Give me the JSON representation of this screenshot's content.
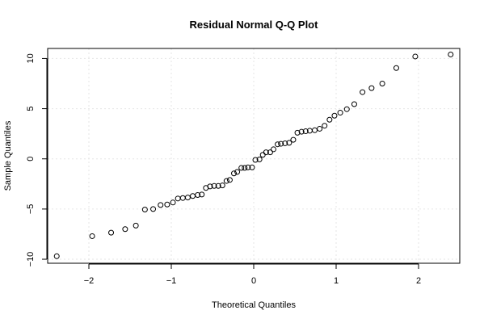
{
  "chart_data": {
    "type": "scatter",
    "title": "Residual Normal Q-Q Plot",
    "xlabel": "Theoretical Quantiles",
    "ylabel": "Sample Quantiles",
    "xlim": [
      -2.5,
      2.5
    ],
    "ylim": [
      -10.4,
      11.0
    ],
    "xticks": [
      -2,
      -1,
      0,
      1,
      2
    ],
    "xtick_labels": [
      "−2",
      "−1",
      "0",
      "1",
      "2"
    ],
    "yticks": [
      -10,
      -5,
      0,
      5,
      10
    ],
    "ytick_labels": [
      "−10",
      "−5",
      "0",
      "5",
      "10"
    ],
    "grid": true,
    "points": [
      {
        "x": -2.39,
        "y": -9.7
      },
      {
        "x": -1.96,
        "y": -7.7
      },
      {
        "x": -1.73,
        "y": -7.35
      },
      {
        "x": -1.56,
        "y": -7.0
      },
      {
        "x": -1.43,
        "y": -6.65
      },
      {
        "x": -1.32,
        "y": -5.05
      },
      {
        "x": -1.22,
        "y": -5.0
      },
      {
        "x": -1.13,
        "y": -4.6
      },
      {
        "x": -1.05,
        "y": -4.55
      },
      {
        "x": -0.98,
        "y": -4.35
      },
      {
        "x": -0.92,
        "y": -3.95
      },
      {
        "x": -0.86,
        "y": -3.9
      },
      {
        "x": -0.8,
        "y": -3.85
      },
      {
        "x": -0.74,
        "y": -3.7
      },
      {
        "x": -0.68,
        "y": -3.6
      },
      {
        "x": -0.63,
        "y": -3.55
      },
      {
        "x": -0.58,
        "y": -2.9
      },
      {
        "x": -0.53,
        "y": -2.75
      },
      {
        "x": -0.48,
        "y": -2.7
      },
      {
        "x": -0.43,
        "y": -2.7
      },
      {
        "x": -0.38,
        "y": -2.65
      },
      {
        "x": -0.33,
        "y": -2.2
      },
      {
        "x": -0.29,
        "y": -2.1
      },
      {
        "x": -0.24,
        "y": -1.45
      },
      {
        "x": -0.2,
        "y": -1.3
      },
      {
        "x": -0.15,
        "y": -0.9
      },
      {
        "x": -0.11,
        "y": -0.9
      },
      {
        "x": -0.07,
        "y": -0.85
      },
      {
        "x": -0.02,
        "y": -0.85
      },
      {
        "x": 0.02,
        "y": -0.1
      },
      {
        "x": 0.07,
        "y": -0.05
      },
      {
        "x": 0.11,
        "y": 0.4
      },
      {
        "x": 0.15,
        "y": 0.65
      },
      {
        "x": 0.2,
        "y": 0.65
      },
      {
        "x": 0.24,
        "y": 0.95
      },
      {
        "x": 0.29,
        "y": 1.45
      },
      {
        "x": 0.33,
        "y": 1.5
      },
      {
        "x": 0.38,
        "y": 1.55
      },
      {
        "x": 0.43,
        "y": 1.6
      },
      {
        "x": 0.48,
        "y": 1.9
      },
      {
        "x": 0.53,
        "y": 2.6
      },
      {
        "x": 0.58,
        "y": 2.7
      },
      {
        "x": 0.63,
        "y": 2.75
      },
      {
        "x": 0.68,
        "y": 2.8
      },
      {
        "x": 0.74,
        "y": 2.85
      },
      {
        "x": 0.8,
        "y": 3.0
      },
      {
        "x": 0.86,
        "y": 3.3
      },
      {
        "x": 0.92,
        "y": 3.9
      },
      {
        "x": 0.98,
        "y": 4.3
      },
      {
        "x": 1.05,
        "y": 4.6
      },
      {
        "x": 1.13,
        "y": 4.95
      },
      {
        "x": 1.22,
        "y": 5.45
      },
      {
        "x": 1.32,
        "y": 6.65
      },
      {
        "x": 1.43,
        "y": 7.05
      },
      {
        "x": 1.56,
        "y": 7.5
      },
      {
        "x": 1.73,
        "y": 9.05
      },
      {
        "x": 1.96,
        "y": 10.2
      },
      {
        "x": 2.39,
        "y": 10.4
      }
    ]
  }
}
